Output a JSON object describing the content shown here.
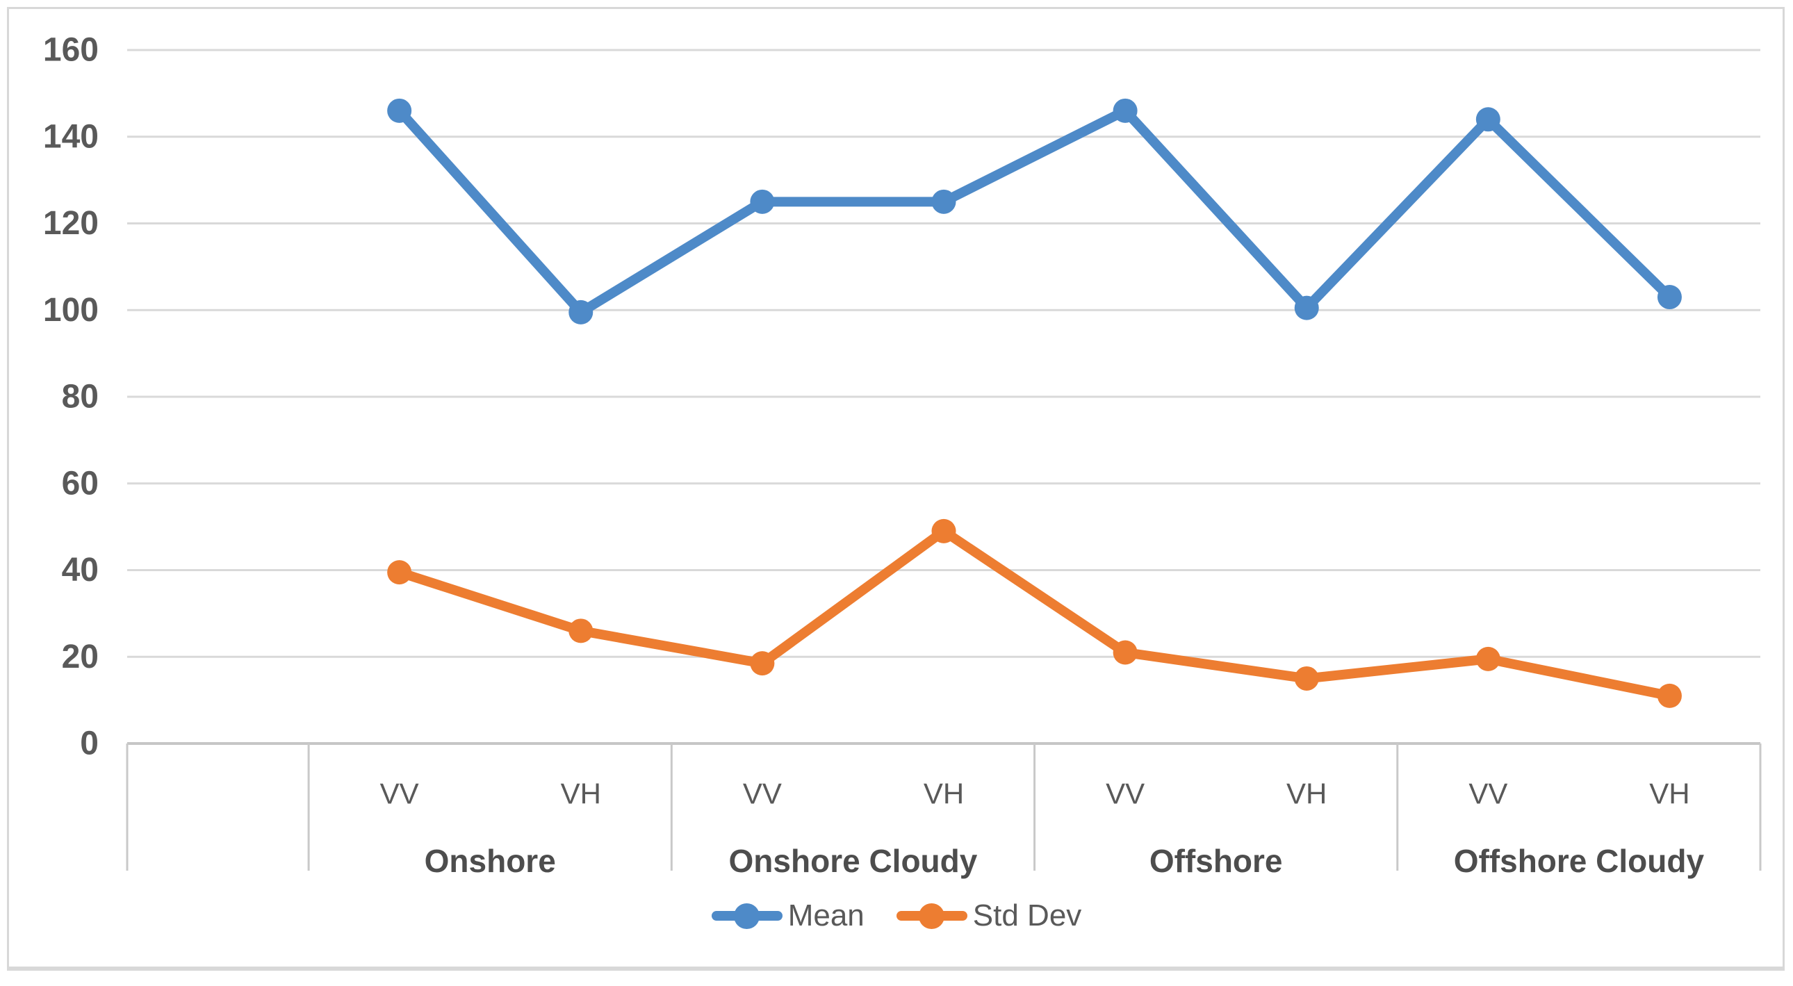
{
  "chart_data": {
    "type": "line",
    "title": "",
    "y_axis": {
      "min": 0,
      "max": 160,
      "step": 20,
      "tick_labels": [
        "160",
        "140",
        "120",
        "100",
        "80",
        "60",
        "40",
        "20",
        "0"
      ]
    },
    "x_axis": {
      "leading_empty_slot": true,
      "groups": [
        {
          "label": "Onshore",
          "sub": [
            "VV",
            "VH"
          ]
        },
        {
          "label": "Onshore Cloudy",
          "sub": [
            "VV",
            "VH"
          ]
        },
        {
          "label": "Offshore",
          "sub": [
            "VV",
            "VH"
          ]
        },
        {
          "label": "Offshore Cloudy",
          "sub": [
            "VV",
            "VH"
          ]
        }
      ]
    },
    "series": [
      {
        "name": "Mean",
        "color": "#4E8AC8",
        "marker": "circle",
        "values": [
          146,
          99.5,
          125,
          125,
          146,
          100.5,
          144,
          103
        ]
      },
      {
        "name": "Std Dev",
        "color": "#ED7D31",
        "marker": "circle",
        "values": [
          39.5,
          26,
          18.5,
          49,
          21,
          15,
          19.5,
          11
        ]
      }
    ],
    "legend": {
      "position": "bottom",
      "items": [
        "Mean",
        "Std Dev"
      ]
    },
    "grid": true
  },
  "colors": {
    "background": "#FFFFFF",
    "border": "#D8D8D8",
    "gridline": "#D9D9D9",
    "axis_line": "#C6C6C6",
    "divider": "#C9C9C9",
    "tick_text": "#595959",
    "category_text": "#595959",
    "group_text": "#4D4D4D",
    "legend_text": "#595959"
  }
}
